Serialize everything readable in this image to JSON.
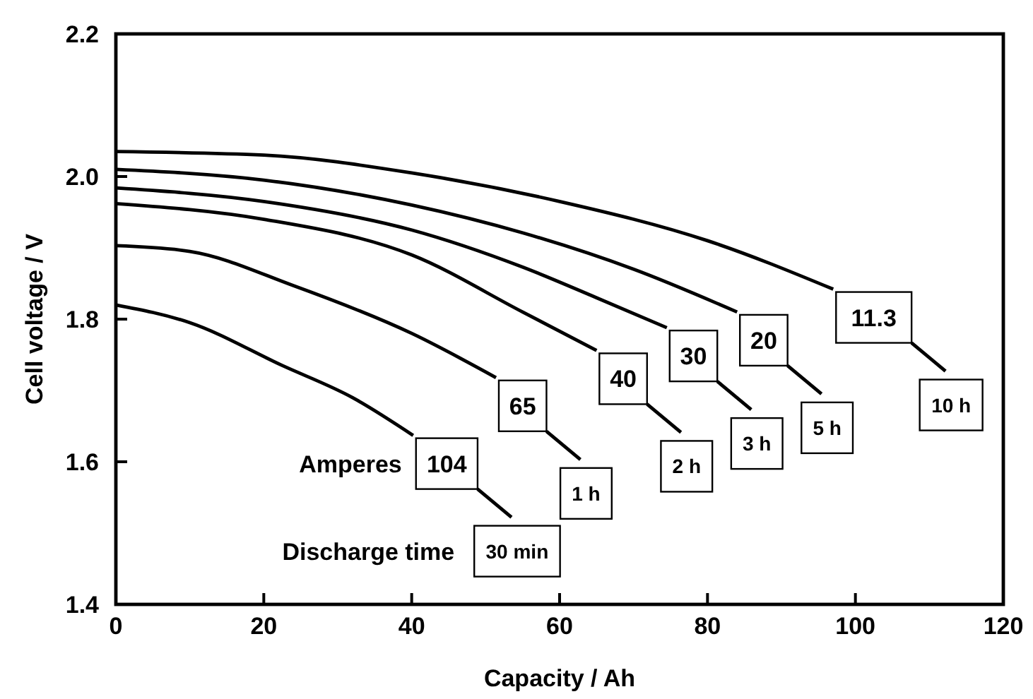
{
  "chart_data": {
    "type": "line",
    "xlabel": "Capacity / Ah",
    "ylabel": "Cell voltage / V",
    "xlim": [
      0,
      120
    ],
    "ylim": [
      1.4,
      2.2
    ],
    "xticks": [
      0,
      20,
      40,
      60,
      80,
      100,
      120
    ],
    "yticks": [
      1.4,
      1.6,
      1.8,
      {
        "value": 2,
        "label": "2.0"
      },
      2.2
    ],
    "grid": false,
    "marker": "none",
    "line_style": "solid",
    "series": [
      {
        "name": "104",
        "color": "#000000",
        "x": [
          0,
          10,
          22.5,
          32,
          40.2
        ],
        "values": [
          1.82,
          1.795,
          1.735,
          1.69,
          1.637
        ]
      },
      {
        "name": "65",
        "color": "#000000",
        "x": [
          0,
          10,
          24,
          40,
          51.4
        ],
        "values": [
          1.903,
          1.895,
          1.847,
          1.78,
          1.718
        ]
      },
      {
        "name": "40",
        "color": "#000000",
        "x": [
          0,
          20,
          40,
          55,
          65
        ],
        "values": [
          1.962,
          1.94,
          1.89,
          1.81,
          1.756
        ]
      },
      {
        "name": "30",
        "color": "#000000",
        "x": [
          0,
          20,
          40,
          55,
          65,
          74.5
        ],
        "values": [
          1.984,
          1.965,
          1.925,
          1.873,
          1.83,
          1.788
        ]
      },
      {
        "name": "20",
        "color": "#000000",
        "x": [
          0,
          20,
          40,
          55,
          70,
          84
        ],
        "values": [
          2.01,
          1.995,
          1.96,
          1.921,
          1.87,
          1.81
        ]
      },
      {
        "name": "11.3",
        "color": "#000000",
        "x": [
          0,
          20,
          40,
          60,
          80,
          97
        ],
        "values": [
          2.035,
          2.03,
          2.005,
          1.965,
          1.91,
          1.842
        ]
      }
    ],
    "annotations": [
      "Amperes",
      "Discharge time",
      "30 min",
      "1 h",
      "2 h",
      "3 h",
      "5 h",
      "10 h"
    ]
  }
}
